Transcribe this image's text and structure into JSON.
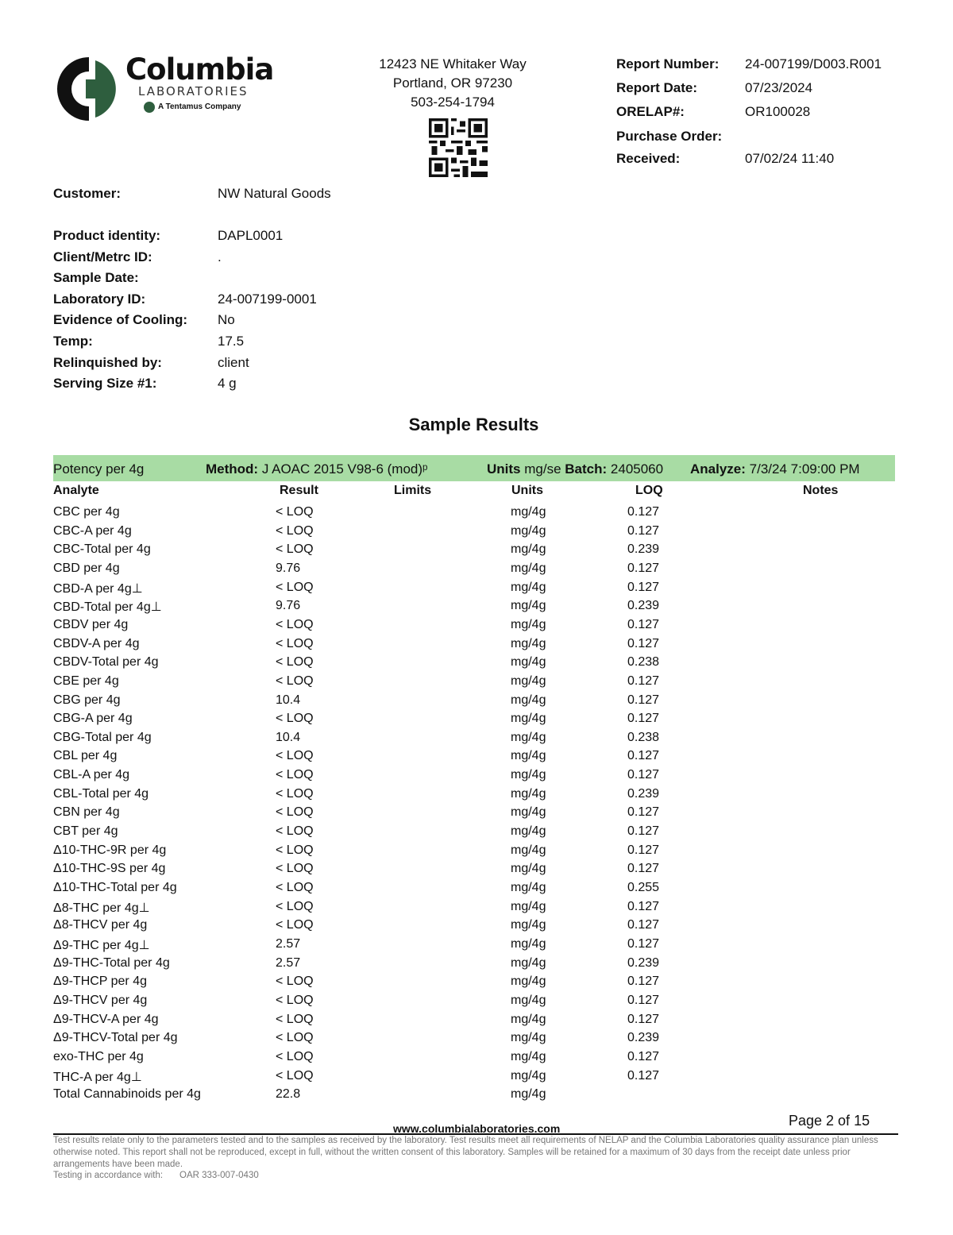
{
  "logo": {
    "name": "Columbia",
    "sub": "LABORATORIES",
    "tag": "A Tentamus Company",
    "brand_green": "#2e5e3e"
  },
  "address": {
    "line1": "12423 NE Whitaker Way",
    "line2": "Portland, OR 97230",
    "phone": "503-254-1794"
  },
  "report": [
    {
      "label": "Report Number:",
      "value": "24-007199/D003.R001"
    },
    {
      "label": "Report Date:",
      "value": "07/23/2024"
    },
    {
      "label": "ORELAP#:",
      "value": "OR100028"
    },
    {
      "label": "Purchase Order:",
      "value": ""
    },
    {
      "label": "Received:",
      "value": "07/02/24  11:40"
    }
  ],
  "customer": {
    "label": "Customer:",
    "value": "NW Natural Goods"
  },
  "sample": [
    {
      "label": "Product identity:",
      "value": "DAPL0001"
    },
    {
      "label": "Client/Metrc ID:",
      "value": "."
    },
    {
      "label": "Sample Date:",
      "value": ""
    },
    {
      "label": "Laboratory ID:",
      "value": "24-007199-0001"
    },
    {
      "label": "Evidence of Cooling:",
      "value": "No"
    },
    {
      "label": "Temp:",
      "value": "17.5"
    },
    {
      "label": "Relinquished by:",
      "value": "client"
    },
    {
      "label": "Serving Size #1:",
      "value": "4 g"
    }
  ],
  "section_title": "Sample Results",
  "bar": {
    "color": "#a8dca4",
    "title": "Potency per 4g",
    "method_label": "Method:",
    "method": "J AOAC 2015 V98-6 (mod)ᵖ",
    "units_label": "Units",
    "units": "mg/se",
    "batch_label": "Batch:",
    "batch": "2405060",
    "analyze_label": "Analyze:",
    "analyze": "7/3/24  7:09:00 PM"
  },
  "columns": {
    "analyte": "Analyte",
    "result": "Result",
    "limits": "Limits",
    "units": "Units",
    "loq": "LOQ",
    "notes": "Notes"
  },
  "rows": [
    {
      "analyte": "CBC per 4g",
      "result": "< LOQ",
      "units": "mg/4g",
      "loq": "0.127"
    },
    {
      "analyte": "CBC-A per 4g",
      "result": "< LOQ",
      "units": "mg/4g",
      "loq": "0.127"
    },
    {
      "analyte": "CBC-Total per 4g",
      "result": "< LOQ",
      "units": "mg/4g",
      "loq": "0.239"
    },
    {
      "analyte": "CBD per 4g",
      "result": "9.76",
      "units": "mg/4g",
      "loq": "0.127"
    },
    {
      "analyte": "CBD-A per 4g⊥",
      "result": "< LOQ",
      "units": "mg/4g",
      "loq": "0.127"
    },
    {
      "analyte": "CBD-Total per 4g⊥",
      "result": "9.76",
      "units": "mg/4g",
      "loq": "0.239"
    },
    {
      "analyte": "CBDV per 4g",
      "result": "< LOQ",
      "units": "mg/4g",
      "loq": "0.127"
    },
    {
      "analyte": "CBDV-A per 4g",
      "result": "< LOQ",
      "units": "mg/4g",
      "loq": "0.127"
    },
    {
      "analyte": "CBDV-Total per 4g",
      "result": "< LOQ",
      "units": "mg/4g",
      "loq": "0.238"
    },
    {
      "analyte": "CBE per 4g",
      "result": "< LOQ",
      "units": "mg/4g",
      "loq": "0.127"
    },
    {
      "analyte": "CBG per 4g",
      "result": "10.4",
      "units": "mg/4g",
      "loq": "0.127"
    },
    {
      "analyte": "CBG-A per 4g",
      "result": "< LOQ",
      "units": "mg/4g",
      "loq": "0.127"
    },
    {
      "analyte": "CBG-Total per 4g",
      "result": "10.4",
      "units": "mg/4g",
      "loq": "0.238"
    },
    {
      "analyte": "CBL per 4g",
      "result": "< LOQ",
      "units": "mg/4g",
      "loq": "0.127"
    },
    {
      "analyte": "CBL-A per 4g",
      "result": "< LOQ",
      "units": "mg/4g",
      "loq": "0.127"
    },
    {
      "analyte": "CBL-Total per 4g",
      "result": "< LOQ",
      "units": "mg/4g",
      "loq": "0.239"
    },
    {
      "analyte": "CBN per 4g",
      "result": "< LOQ",
      "units": "mg/4g",
      "loq": "0.127"
    },
    {
      "analyte": "CBT per 4g",
      "result": "< LOQ",
      "units": "mg/4g",
      "loq": "0.127"
    },
    {
      "analyte": "Δ10-THC-9R per 4g",
      "result": "< LOQ",
      "units": "mg/4g",
      "loq": "0.127"
    },
    {
      "analyte": "Δ10-THC-9S per 4g",
      "result": "< LOQ",
      "units": "mg/4g",
      "loq": "0.127"
    },
    {
      "analyte": "Δ10-THC-Total per 4g",
      "result": "< LOQ",
      "units": "mg/4g",
      "loq": "0.255"
    },
    {
      "analyte": "Δ8-THC per 4g⊥",
      "result": "< LOQ",
      "units": "mg/4g",
      "loq": "0.127"
    },
    {
      "analyte": "Δ8-THCV per 4g",
      "result": "< LOQ",
      "units": "mg/4g",
      "loq": "0.127"
    },
    {
      "analyte": "Δ9-THC per 4g⊥",
      "result": "2.57",
      "units": "mg/4g",
      "loq": "0.127"
    },
    {
      "analyte": "Δ9-THC-Total per 4g",
      "result": "2.57",
      "units": "mg/4g",
      "loq": "0.239"
    },
    {
      "analyte": "Δ9-THCP per 4g",
      "result": "< LOQ",
      "units": "mg/4g",
      "loq": "0.127"
    },
    {
      "analyte": "Δ9-THCV per 4g",
      "result": "< LOQ",
      "units": "mg/4g",
      "loq": "0.127"
    },
    {
      "analyte": "Δ9-THCV-A per 4g",
      "result": "< LOQ",
      "units": "mg/4g",
      "loq": "0.127"
    },
    {
      "analyte": "Δ9-THCV-Total per 4g",
      "result": "< LOQ",
      "units": "mg/4g",
      "loq": "0.239"
    },
    {
      "analyte": "exo-THC per 4g",
      "result": "< LOQ",
      "units": "mg/4g",
      "loq": "0.127"
    },
    {
      "analyte": "THC-A per 4g⊥",
      "result": "< LOQ",
      "units": "mg/4g",
      "loq": "0.127"
    },
    {
      "analyte": "Total Cannabinoids per 4g",
      "result": "22.8",
      "units": "mg/4g",
      "loq": ""
    }
  ],
  "footer": {
    "page": "Page 2 of 15",
    "website": "www.columbialaboratories.com",
    "disclaimer": "Test results relate only to the parameters tested and to the samples as received by the laboratory. Test results meet all requirements of NELAP and the Columbia Laboratories quality assurance plan unless otherwise noted. This report shall not be reproduced, except in full, without the written consent of this laboratory. Samples will be retained for a maximum of 30 days from the receipt date unless prior arrangements have been made.",
    "testing_label": "Testing in accordance with:",
    "testing_value": "OAR 333-007-0430"
  }
}
